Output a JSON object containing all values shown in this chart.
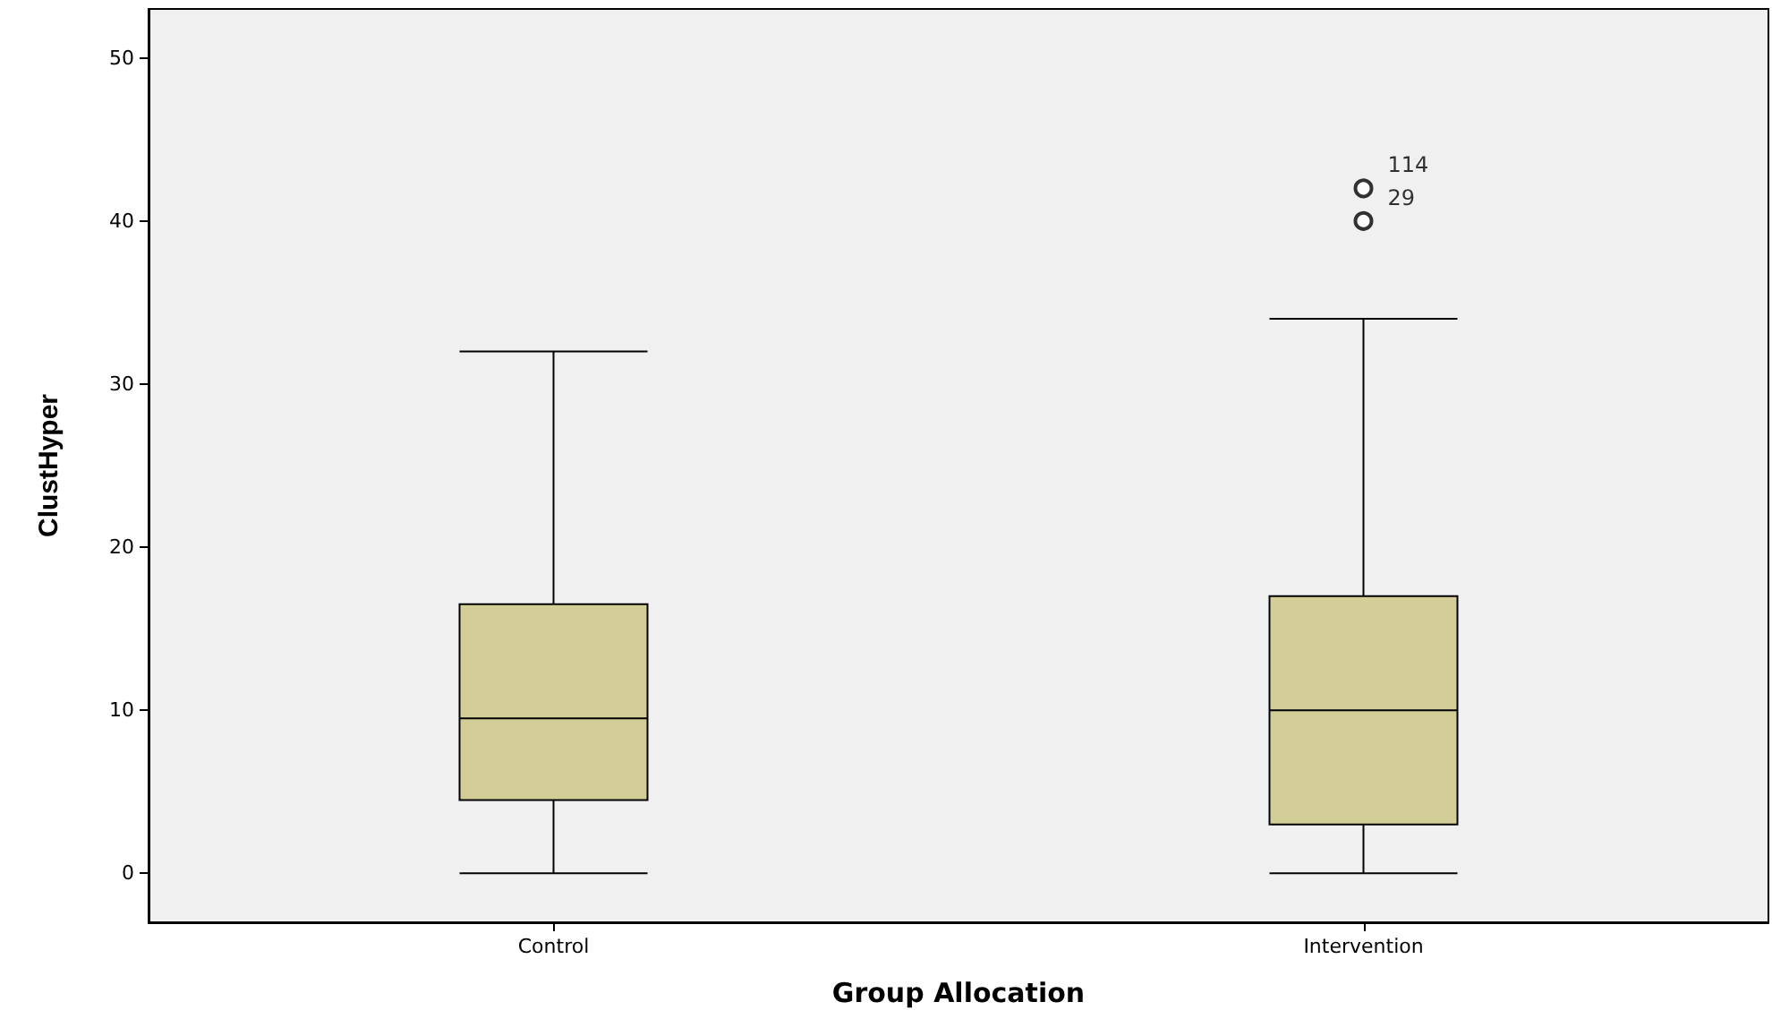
{
  "chart_data": {
    "type": "box",
    "xlabel": "Group Allocation",
    "ylabel": "ClustHyper",
    "categories": [
      "Control",
      "Intervention"
    ],
    "color": "#d3ce97",
    "boxes": [
      {
        "low": 0,
        "q1": 4.5,
        "median": 9.5,
        "q3": 16.5,
        "high": 32
      },
      {
        "low": 0,
        "q1": 3,
        "median": 10,
        "q3": 17,
        "high": 34,
        "outliers": [
          42,
          40
        ]
      }
    ],
    "ylim": [
      -3,
      53
    ],
    "yticks": [
      0,
      10,
      20,
      30,
      40,
      50
    ],
    "annotations": [
      "114",
      "29"
    ]
  }
}
